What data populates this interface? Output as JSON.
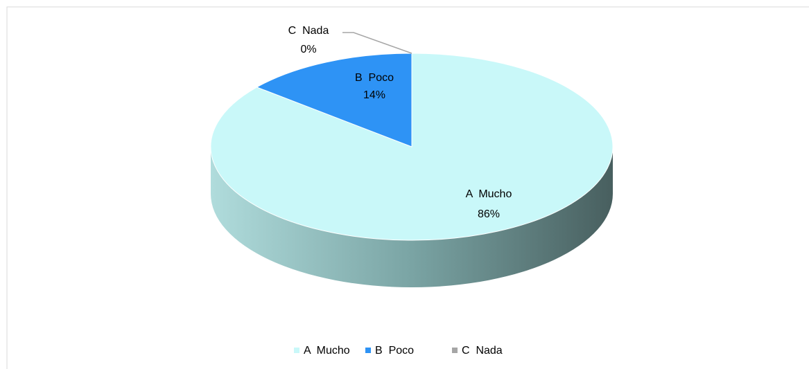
{
  "chart_data": {
    "type": "pie",
    "categories": [
      "A  Mucho",
      "B  Poco",
      "C  Nada"
    ],
    "values": [
      86,
      14,
      0
    ],
    "value_labels": [
      "86%",
      "14%",
      "0%"
    ],
    "colors": [
      "#c9f8f9",
      "#2e93f5",
      "#a6a6a6"
    ],
    "legend": "bottom"
  }
}
